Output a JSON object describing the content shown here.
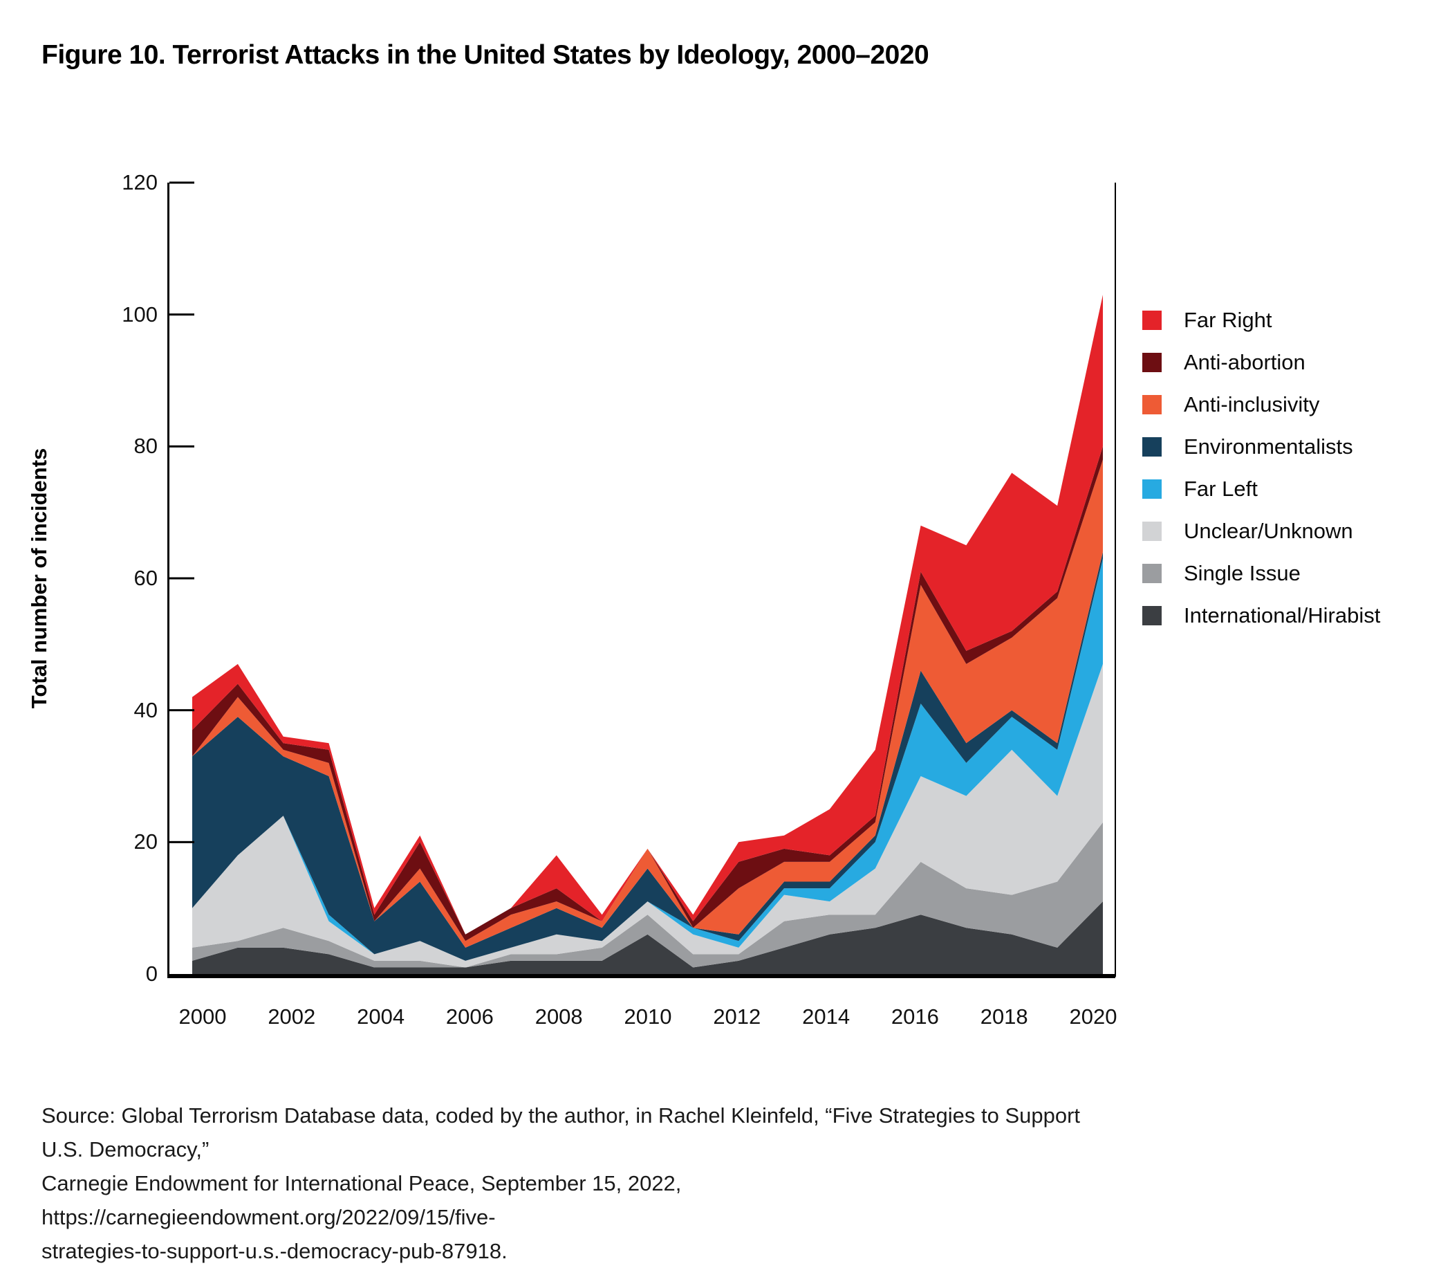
{
  "figure": {
    "title": "Figure 10. Terrorist Attacks in the United States by Ideology, 2000–2020",
    "source_lines": [
      "Source: Global Terrorism Database data, coded by the author, in Rachel Kleinfeld, “Five Strategies to Support U.S. Democracy,”",
      "Carnegie Endowment for International Peace, September 15, 2022, https://carnegieendowment.org/2022/09/15/five-",
      "strategies-to-support-u.s.-democracy-pub-87918."
    ]
  },
  "chart_data": {
    "type": "area",
    "stacked": true,
    "title": "Figure 10. Terrorist Attacks in the United States by Ideology, 2000–2020",
    "xlabel": "",
    "ylabel": "Total number of incidents",
    "ylim": [
      0,
      120
    ],
    "yticks": [
      0,
      20,
      40,
      60,
      80,
      100,
      120
    ],
    "xticks": [
      2000,
      2002,
      2004,
      2006,
      2008,
      2010,
      2012,
      2014,
      2016,
      2018,
      2020
    ],
    "grid": false,
    "legend_position": "right",
    "x": [
      2000,
      2001,
      2002,
      2003,
      2004,
      2005,
      2006,
      2007,
      2008,
      2009,
      2010,
      2011,
      2012,
      2013,
      2014,
      2015,
      2016,
      2017,
      2018,
      2019,
      2020
    ],
    "series_note": "series listed bottom-to-top of the stack",
    "series": [
      {
        "name": "international_hirabist",
        "label": "International/Hirabist",
        "color": "#3B3E42",
        "values": [
          2,
          4,
          4,
          3,
          1,
          1,
          1,
          2,
          2,
          2,
          6,
          1,
          2,
          4,
          6,
          7,
          9,
          7,
          6,
          4,
          11
        ]
      },
      {
        "name": "single_issue",
        "label": "Single Issue",
        "color": "#9B9DA0",
        "values": [
          2,
          1,
          3,
          2,
          1,
          1,
          0,
          1,
          1,
          2,
          3,
          2,
          1,
          4,
          3,
          2,
          8,
          6,
          6,
          10,
          12
        ]
      },
      {
        "name": "unclear_unknown",
        "label": "Unclear/Unknown",
        "color": "#D2D3D5",
        "values": [
          6,
          13,
          17,
          3,
          1,
          3,
          1,
          1,
          3,
          1,
          2,
          3,
          1,
          4,
          2,
          7,
          13,
          14,
          22,
          13,
          24
        ]
      },
      {
        "name": "far_left",
        "label": "Far Left",
        "color": "#27AAE1",
        "values": [
          0,
          0,
          0,
          1,
          0,
          0,
          0,
          0,
          0,
          0,
          0,
          1,
          1,
          1,
          2,
          4,
          11,
          5,
          5,
          7,
          16
        ]
      },
      {
        "name": "environmentalists",
        "label": "Environmentalists",
        "color": "#16405C",
        "values": [
          23,
          21,
          9,
          21,
          5,
          9,
          2,
          3,
          4,
          2,
          5,
          0,
          1,
          1,
          1,
          1,
          5,
          3,
          1,
          1,
          1
        ]
      },
      {
        "name": "anti_inclusivity",
        "label": "Anti-inclusivity",
        "color": "#EE5B35",
        "values": [
          0,
          3,
          1,
          2,
          0,
          2,
          1,
          2,
          1,
          1,
          3,
          0,
          7,
          3,
          3,
          2,
          13,
          12,
          11,
          22,
          14
        ]
      },
      {
        "name": "anti_abortion",
        "label": "Anti-abortion",
        "color": "#6D0E12",
        "values": [
          4,
          2,
          1,
          2,
          1,
          4,
          1,
          1,
          2,
          0,
          0,
          1,
          4,
          2,
          1,
          1,
          2,
          2,
          1,
          1,
          2
        ]
      },
      {
        "name": "far_right",
        "label": "Far Right",
        "color": "#E42329",
        "values": [
          5,
          3,
          1,
          1,
          1,
          1,
          0,
          0,
          5,
          1,
          0,
          1,
          3,
          2,
          7,
          10,
          7,
          16,
          24,
          13,
          23
        ]
      }
    ],
    "legend_order_top_to_bottom": [
      "far_right",
      "anti_abortion",
      "anti_inclusivity",
      "environmentalists",
      "far_left",
      "unclear_unknown",
      "single_issue",
      "international_hirabist"
    ],
    "totals_by_year": [
      42,
      47,
      36,
      35,
      10,
      21,
      6,
      10,
      18,
      9,
      19,
      9,
      20,
      21,
      25,
      34,
      68,
      65,
      76,
      71,
      103
    ]
  },
  "colors": {
    "axis": "#000000",
    "text": "#111111",
    "background": "#ffffff"
  }
}
